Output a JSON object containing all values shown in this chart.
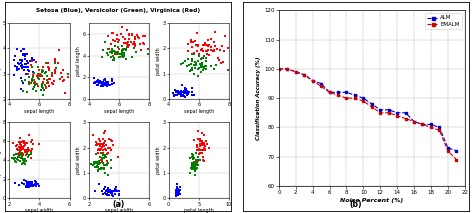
{
  "title_left": "Setosa (Blue), Versicolor (Green), Virginica (Red)",
  "label_a": "(a)",
  "label_b": "(b)",
  "iris_colors": {
    "setosa": "blue",
    "versicolor": "green",
    "virginica": "red"
  },
  "iris_marker": "s",
  "iris_marker_size": 2.5,
  "subplot_configs": [
    {
      "xlabel": "sepal length",
      "ylabel": "sepal width",
      "xlim": [
        4,
        8
      ],
      "ylim": [
        2,
        5
      ],
      "xticks": [
        4,
        6,
        8
      ],
      "yticks": [
        2,
        3,
        4,
        5
      ]
    },
    {
      "xlabel": "sepal length",
      "ylabel": "petal length",
      "xlim": [
        4,
        8
      ],
      "ylim": [
        0,
        7
      ],
      "xticks": [
        4,
        6,
        8
      ],
      "yticks": [
        0,
        2,
        4,
        6
      ]
    },
    {
      "xlabel": "sepal length",
      "ylabel": "petal width",
      "xlim": [
        4,
        8
      ],
      "ylim": [
        0,
        3
      ],
      "xticks": [
        4,
        6,
        8
      ],
      "yticks": [
        0,
        1,
        2,
        3
      ]
    },
    {
      "xlabel": "sepal width",
      "ylabel": "petal length",
      "xlim": [
        2,
        6
      ],
      "ylim": [
        0,
        8
      ],
      "xticks": [
        2,
        4,
        6
      ],
      "yticks": [
        0,
        2,
        4,
        6,
        8
      ]
    },
    {
      "xlabel": "sepal width",
      "ylabel": "petal width",
      "xlim": [
        2,
        6
      ],
      "ylim": [
        0,
        3
      ],
      "xticks": [
        2,
        4,
        6
      ],
      "yticks": [
        0,
        1,
        2,
        3
      ]
    },
    {
      "xlabel": "petal length",
      "ylabel": "petal width",
      "xlim": [
        0,
        10
      ],
      "ylim": [
        0,
        3
      ],
      "xticks": [
        0,
        5,
        10
      ],
      "yticks": [
        0,
        1,
        2,
        3
      ]
    }
  ],
  "feature_pairs": [
    [
      0,
      1
    ],
    [
      0,
      2
    ],
    [
      0,
      3
    ],
    [
      1,
      2
    ],
    [
      1,
      3
    ],
    [
      2,
      3
    ]
  ],
  "noise_x": [
    0,
    1,
    2,
    3,
    4,
    5,
    6,
    7,
    8,
    9,
    10,
    11,
    12,
    13,
    14,
    15,
    16,
    17,
    18,
    19,
    20,
    21
  ],
  "alm_y": [
    100,
    100,
    99,
    98,
    96,
    95,
    92,
    92,
    92,
    91,
    90,
    88,
    86,
    86,
    85,
    85,
    82,
    81,
    81,
    80,
    73,
    72
  ],
  "emalm_y": [
    100,
    100,
    99,
    98,
    96,
    94,
    92,
    91,
    90,
    90,
    89,
    87,
    85,
    85,
    84,
    83,
    82,
    81,
    80,
    79,
    72,
    69
  ],
  "ylabel_b": "Classification Accuracy (%)",
  "xlabel_b": "Noise Percent (%)",
  "ylim_b": [
    60,
    120
  ],
  "xlim_b": [
    0,
    22
  ],
  "yticks_b": [
    60,
    70,
    80,
    90,
    100,
    110,
    120
  ],
  "xticks_b": [
    0,
    2,
    4,
    6,
    8,
    10,
    12,
    14,
    16,
    18,
    20,
    22
  ],
  "alm_color": "#0000cc",
  "emalm_color": "#cc0000"
}
